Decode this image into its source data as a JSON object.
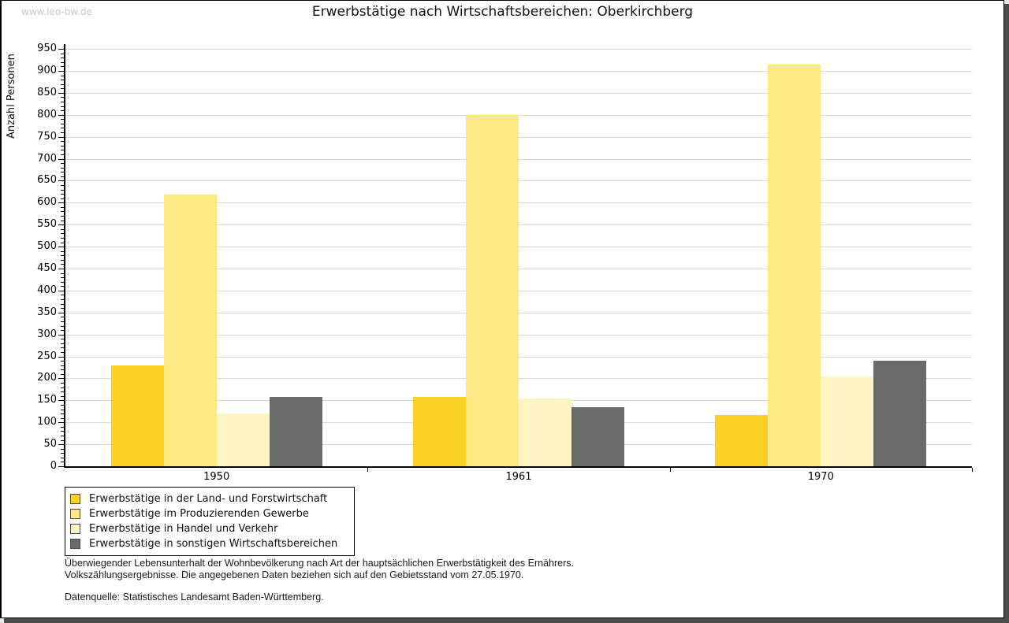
{
  "header": {
    "watermark": "www.leo-bw.de",
    "title": "Erwerbstätige nach Wirtschaftsbereichen: Oberkirchberg"
  },
  "chart_data": {
    "type": "bar",
    "title": "Erwerbstätige nach Wirtschaftsbereichen: Oberkirchberg",
    "xlabel": "",
    "ylabel": "Anzahl Personen",
    "ylim": [
      0,
      950
    ],
    "ytick_step": 50,
    "yminor_step": 10,
    "grid": true,
    "legend_position": "bottom-left",
    "categories": [
      "1950",
      "1961",
      "1970"
    ],
    "series": [
      {
        "name": "Erwerbstätige in der Land- und Forstwirtschaft",
        "color": "#FBD128",
        "values": [
          230,
          157,
          117
        ]
      },
      {
        "name": "Erwerbstätige im Produzierenden Gewerbe",
        "color": "#FCE884",
        "values": [
          618,
          800,
          915
        ]
      },
      {
        "name": "Erwerbstätige in Handel und Verkehr",
        "color": "#FDF3C4",
        "values": [
          120,
          154,
          205
        ]
      },
      {
        "name": "Erwerbstätige in sonstigen Wirtschaftsbereichen",
        "color": "#6A6A6A",
        "values": [
          157,
          135,
          240
        ]
      }
    ],
    "colors": {
      "gridline": "#DBDBDB",
      "axis": "#000000",
      "frame_shadow": "#4C4C4C",
      "watermark_text": "#C8C8C8"
    }
  },
  "footnotes": {
    "line1": "Überwiegender Lebensunterhalt der Wohnbevölkerung nach Art der hauptsächlichen Erwerbstätigkeit des Ernährers.",
    "line2": "Volkszählungsergebnisse. Die angegebenen Daten beziehen sich auf den Gebietsstand vom 27.05.1970.",
    "source": "Datenquelle: Statistisches Landesamt Baden-Württemberg."
  }
}
